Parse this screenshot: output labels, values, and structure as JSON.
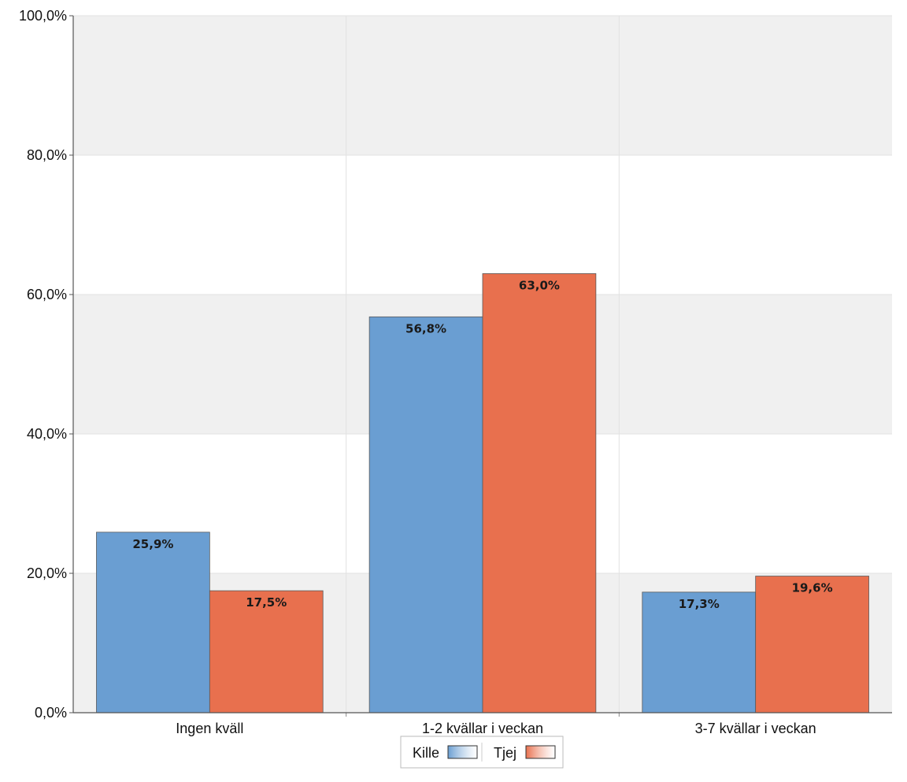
{
  "chart_data": {
    "type": "bar",
    "categories": [
      "Ingen kväll",
      "1-2 kvällar i veckan",
      "3-7 kvällar i veckan"
    ],
    "series": [
      {
        "name": "Kille",
        "color": "#6a9ed2",
        "values": [
          25.9,
          56.8,
          17.3
        ],
        "labels": [
          "25,9%",
          "56,8%",
          "17,3%"
        ]
      },
      {
        "name": "Tjej",
        "color": "#e8704e",
        "values": [
          17.5,
          63.0,
          19.6
        ],
        "labels": [
          "17,5%",
          "63,0%",
          "19,6%"
        ]
      }
    ],
    "ylim": [
      0,
      100
    ],
    "yticks": [
      0,
      20,
      40,
      60,
      80,
      100
    ],
    "ytick_labels": [
      "0,0%",
      "20,0%",
      "40,0%",
      "60,0%",
      "80,0%",
      "100,0%"
    ],
    "title": "",
    "xlabel": "",
    "ylabel": "",
    "grid": true,
    "band_color": "#f0f0f0",
    "legend_position": "bottom-center"
  }
}
